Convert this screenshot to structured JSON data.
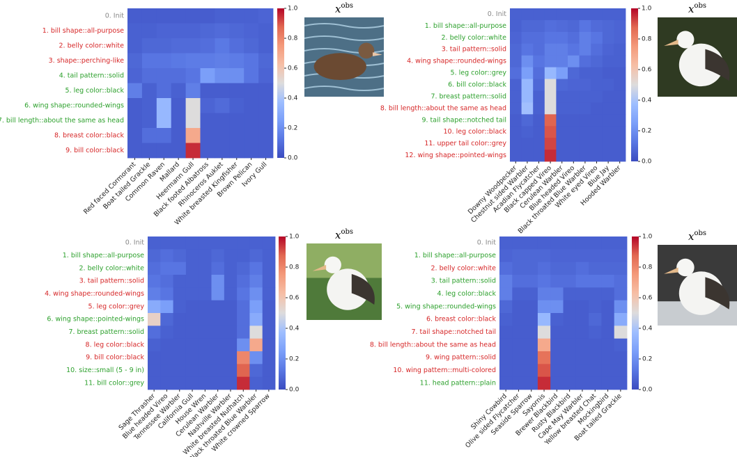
{
  "chart_data": [
    {
      "type": "heatmap",
      "colormap": "coolwarm",
      "rows": [
        "0. Init",
        "1. bill shape::all-purpose",
        "2. belly color::white",
        "3. shape::perching-like",
        "4. tail pattern::solid",
        "5. leg color::black",
        "6. wing shape::rounded-wings",
        "7. bill length::about the same as head",
        "8. breast color::black",
        "9. bill color::black"
      ],
      "row_colors": [
        "#888888",
        "#d62728",
        "#d62728",
        "#d62728",
        "#2ca02c",
        "#2ca02c",
        "#2ca02c",
        "#2ca02c",
        "#d62728",
        "#d62728"
      ],
      "columns": [
        "Red faced Cormorant",
        "Boat tailed Grackle",
        "Common Raven",
        "Mallard",
        "Heermann Gull",
        "Black footed Albatross",
        "Rhinoceros Auklet",
        "White breasted Kingfisher",
        "Brown Pelican",
        "Ivory Gull"
      ],
      "values": [
        [
          0.05,
          0.05,
          0.05,
          0.05,
          0.05,
          0.05,
          0.06,
          0.06,
          0.06,
          0.07
        ],
        [
          0.06,
          0.06,
          0.07,
          0.07,
          0.07,
          0.08,
          0.09,
          0.08,
          0.07,
          0.06
        ],
        [
          0.06,
          0.08,
          0.08,
          0.09,
          0.09,
          0.1,
          0.13,
          0.1,
          0.08,
          0.06
        ],
        [
          0.08,
          0.12,
          0.12,
          0.13,
          0.14,
          0.14,
          0.15,
          0.14,
          0.12,
          0.08
        ],
        [
          0.07,
          0.1,
          0.1,
          0.1,
          0.12,
          0.25,
          0.2,
          0.2,
          0.12,
          0.07
        ],
        [
          0.15,
          0.06,
          0.1,
          0.06,
          0.15,
          0.05,
          0.05,
          0.05,
          0.05,
          0.05
        ],
        [
          0.05,
          0.06,
          0.35,
          0.05,
          0.5,
          0.07,
          0.09,
          0.06,
          0.05,
          0.05
        ],
        [
          0.05,
          0.06,
          0.35,
          0.05,
          0.5,
          0.05,
          0.05,
          0.05,
          0.05,
          0.05
        ],
        [
          0.05,
          0.1,
          0.1,
          0.05,
          0.7,
          0.05,
          0.05,
          0.05,
          0.05,
          0.05
        ],
        [
          0.05,
          0.05,
          0.05,
          0.05,
          0.95,
          0.05,
          0.05,
          0.05,
          0.05,
          0.05
        ]
      ],
      "clim": [
        0,
        1
      ],
      "cticks": [
        {
          "value": 0,
          "label": "0.0"
        },
        0.2,
        0.4,
        0.6,
        0.8,
        {
          "value": 1,
          "label": "1.0"
        }
      ],
      "image_label": {
        "base": "x",
        "sup": "obs"
      }
    },
    {
      "type": "heatmap",
      "colormap": "coolwarm",
      "rows": [
        "0. Init",
        "1. bill shape::all-purpose",
        "2. belly color::white",
        "3. tail pattern::solid",
        "4. wing shape::rounded-wings",
        "5. leg color::grey",
        "6. bill color::black",
        "7. breast pattern::solid",
        "8. bill length::about the same as head",
        "9. tail shape::notched tail",
        "10. leg color::black",
        "11. upper tail color::grey",
        "12. wing shape::pointed-wings"
      ],
      "row_colors": [
        "#888888",
        "#2ca02c",
        "#2ca02c",
        "#d62728",
        "#d62728",
        "#2ca02c",
        "#2ca02c",
        "#2ca02c",
        "#d62728",
        "#2ca02c",
        "#d62728",
        "#d62728",
        "#d62728"
      ],
      "columns": [
        "Downy Woodpecker",
        "Chestnut sided Warbler",
        "Acadian Flycatcher",
        "Black capped Vireo",
        "Cerulean Warbler",
        "Blue headed Vireo",
        "Black throated Blue Warbler",
        "White eyed Vireo",
        "Blue Jay",
        "Hooded Warbler"
      ],
      "values": [
        [
          0.06,
          0.06,
          0.06,
          0.06,
          0.06,
          0.06,
          0.06,
          0.06,
          0.06,
          0.06
        ],
        [
          0.06,
          0.08,
          0.08,
          0.1,
          0.09,
          0.08,
          0.12,
          0.09,
          0.08,
          0.07
        ],
        [
          0.07,
          0.1,
          0.1,
          0.12,
          0.12,
          0.1,
          0.15,
          0.12,
          0.08,
          0.07
        ],
        [
          0.08,
          0.12,
          0.1,
          0.15,
          0.15,
          0.12,
          0.15,
          0.1,
          0.07,
          0.06
        ],
        [
          0.08,
          0.2,
          0.12,
          0.15,
          0.15,
          0.2,
          0.1,
          0.08,
          0.06,
          0.06
        ],
        [
          0.1,
          0.25,
          0.1,
          0.35,
          0.25,
          0.08,
          0.06,
          0.06,
          0.05,
          0.05
        ],
        [
          0.06,
          0.35,
          0.08,
          0.5,
          0.08,
          0.07,
          0.07,
          0.06,
          0.06,
          0.05
        ],
        [
          0.06,
          0.35,
          0.06,
          0.5,
          0.06,
          0.06,
          0.06,
          0.06,
          0.05,
          0.05
        ],
        [
          0.06,
          0.38,
          0.06,
          0.5,
          0.06,
          0.06,
          0.06,
          0.05,
          0.05,
          0.05
        ],
        [
          0.05,
          0.08,
          0.05,
          0.88,
          0.05,
          0.05,
          0.05,
          0.05,
          0.05,
          0.05
        ],
        [
          0.05,
          0.06,
          0.05,
          0.9,
          0.05,
          0.05,
          0.05,
          0.05,
          0.05,
          0.05
        ],
        [
          0.05,
          0.05,
          0.05,
          0.92,
          0.05,
          0.05,
          0.05,
          0.05,
          0.05,
          0.05
        ],
        [
          0.05,
          0.05,
          0.05,
          0.95,
          0.05,
          0.05,
          0.05,
          0.05,
          0.05,
          0.05
        ]
      ],
      "clim": [
        0,
        1
      ],
      "cticks": [
        {
          "value": 0,
          "label": "0.0"
        },
        0.2,
        0.4,
        0.6,
        0.8,
        {
          "value": 1,
          "label": "1.0"
        }
      ],
      "image_label": {
        "base": "x",
        "sup": "obs"
      }
    },
    {
      "type": "heatmap",
      "colormap": "coolwarm",
      "rows": [
        "0. Init",
        "1. bill shape::all-purpose",
        "2. belly color::white",
        "3. tail pattern::solid",
        "4. wing shape::rounded-wings",
        "5. leg color::grey",
        "6. wing shape::pointed-wings",
        "7. breast pattern::solid",
        "8. leg color::black",
        "9. bill color::black",
        "10. size::small (5 - 9 in)",
        "11. bill color::grey"
      ],
      "row_colors": [
        "#888888",
        "#2ca02c",
        "#2ca02c",
        "#d62728",
        "#d62728",
        "#d62728",
        "#2ca02c",
        "#2ca02c",
        "#d62728",
        "#d62728",
        "#2ca02c",
        "#2ca02c"
      ],
      "columns": [
        "Sage Thrasher",
        "Blue headed Vireo",
        "Tennessee Warbler",
        "California Gull",
        "House Wren",
        "Cerulean Warbler",
        "Nashville Warbler",
        "White breasted Nuthatch",
        "Black throated Blue Warbler",
        "White crowned Sparrow"
      ],
      "values": [
        [
          0.06,
          0.06,
          0.06,
          0.06,
          0.06,
          0.06,
          0.06,
          0.06,
          0.06,
          0.06
        ],
        [
          0.08,
          0.1,
          0.08,
          0.06,
          0.06,
          0.08,
          0.06,
          0.06,
          0.08,
          0.06
        ],
        [
          0.1,
          0.12,
          0.12,
          0.06,
          0.06,
          0.1,
          0.06,
          0.08,
          0.12,
          0.06
        ],
        [
          0.12,
          0.1,
          0.06,
          0.06,
          0.06,
          0.2,
          0.06,
          0.1,
          0.15,
          0.06
        ],
        [
          0.15,
          0.12,
          0.06,
          0.06,
          0.06,
          0.2,
          0.06,
          0.12,
          0.2,
          0.06
        ],
        [
          0.3,
          0.25,
          0.06,
          0.05,
          0.05,
          0.05,
          0.05,
          0.1,
          0.25,
          0.05
        ],
        [
          0.55,
          0.08,
          0.05,
          0.05,
          0.05,
          0.05,
          0.05,
          0.1,
          0.3,
          0.05
        ],
        [
          0.1,
          0.06,
          0.05,
          0.05,
          0.05,
          0.05,
          0.05,
          0.1,
          0.5,
          0.05
        ],
        [
          0.06,
          0.05,
          0.05,
          0.05,
          0.05,
          0.05,
          0.05,
          0.2,
          0.7,
          0.05
        ],
        [
          0.05,
          0.05,
          0.05,
          0.05,
          0.05,
          0.05,
          0.05,
          0.8,
          0.2,
          0.05
        ],
        [
          0.05,
          0.05,
          0.05,
          0.05,
          0.05,
          0.05,
          0.05,
          0.88,
          0.08,
          0.05
        ],
        [
          0.05,
          0.05,
          0.05,
          0.05,
          0.05,
          0.05,
          0.05,
          0.95,
          0.06,
          0.05
        ]
      ],
      "clim": [
        0,
        1
      ],
      "cticks": [
        {
          "value": 0,
          "label": "0.0"
        },
        0.2,
        0.4,
        0.6,
        0.8,
        {
          "value": 1,
          "label": "1.0"
        }
      ],
      "image_label": {
        "base": "x",
        "sup": "obs"
      }
    },
    {
      "type": "heatmap",
      "colormap": "coolwarm",
      "rows": [
        "0. Init",
        "1. bill shape::all-purpose",
        "2. belly color::white",
        "3. tail pattern::solid",
        "4. leg color::black",
        "5. wing shape::rounded-wings",
        "6. breast color::black",
        "7. tail shape::notched tail",
        "8. bill length::about the same as head",
        "9. wing pattern::solid",
        "10. wing pattern::multi-colored",
        "11. head pattern::plain"
      ],
      "row_colors": [
        "#888888",
        "#2ca02c",
        "#d62728",
        "#2ca02c",
        "#2ca02c",
        "#2ca02c",
        "#d62728",
        "#d62728",
        "#d62728",
        "#d62728",
        "#d62728",
        "#2ca02c"
      ],
      "columns": [
        "Shiny Cowbird",
        "Olive sided Flycatcher",
        "Seaside Sparrow",
        "Sayornis",
        "Brewer Blackbird",
        "Rusty Blackbird",
        "Cape May Warbler",
        "Yellow breasted Chat",
        "Mockingbird",
        "Boat tailed Grackle"
      ],
      "values": [
        [
          0.06,
          0.06,
          0.06,
          0.06,
          0.06,
          0.06,
          0.06,
          0.06,
          0.06,
          0.06
        ],
        [
          0.07,
          0.08,
          0.08,
          0.08,
          0.07,
          0.07,
          0.07,
          0.07,
          0.07,
          0.07
        ],
        [
          0.1,
          0.08,
          0.08,
          0.1,
          0.08,
          0.08,
          0.1,
          0.08,
          0.08,
          0.08
        ],
        [
          0.15,
          0.1,
          0.1,
          0.12,
          0.1,
          0.1,
          0.12,
          0.12,
          0.12,
          0.1
        ],
        [
          0.15,
          0.06,
          0.06,
          0.15,
          0.15,
          0.06,
          0.06,
          0.06,
          0.06,
          0.1
        ],
        [
          0.08,
          0.05,
          0.05,
          0.2,
          0.2,
          0.05,
          0.05,
          0.06,
          0.05,
          0.2
        ],
        [
          0.06,
          0.05,
          0.05,
          0.35,
          0.06,
          0.05,
          0.05,
          0.08,
          0.05,
          0.3
        ],
        [
          0.05,
          0.05,
          0.05,
          0.5,
          0.05,
          0.05,
          0.05,
          0.06,
          0.05,
          0.5
        ],
        [
          0.05,
          0.05,
          0.05,
          0.7,
          0.05,
          0.05,
          0.05,
          0.05,
          0.05,
          0.06
        ],
        [
          0.05,
          0.05,
          0.05,
          0.85,
          0.05,
          0.05,
          0.05,
          0.05,
          0.05,
          0.05
        ],
        [
          0.05,
          0.05,
          0.05,
          0.9,
          0.05,
          0.05,
          0.05,
          0.05,
          0.05,
          0.05
        ],
        [
          0.05,
          0.05,
          0.05,
          0.95,
          0.05,
          0.05,
          0.05,
          0.05,
          0.05,
          0.05
        ]
      ],
      "clim": [
        0,
        1
      ],
      "cticks": [
        {
          "value": 0,
          "label": "0.0"
        },
        0.2,
        0.4,
        0.6,
        0.8,
        {
          "value": 1,
          "label": "1.0"
        }
      ],
      "image_label": {
        "base": "x",
        "sup": "obs"
      }
    }
  ]
}
